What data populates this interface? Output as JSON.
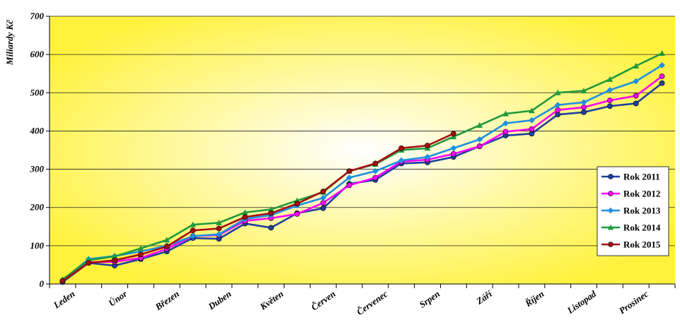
{
  "chart_data": {
    "type": "line",
    "ylabel": "Miliardy Kč",
    "ylim": [
      0,
      700
    ],
    "yticks": [
      0,
      100,
      200,
      300,
      400,
      500,
      600,
      700
    ],
    "grid": "horizontal",
    "legend_position": "right",
    "background": "radial gradient, light yellow center to yellow edges",
    "month_labels": [
      "Leden",
      "Únor",
      "Březen",
      "Duben",
      "Květen",
      "Červen",
      "Červenec",
      "Srpen",
      "Září",
      "Říjen",
      "Listopad",
      "Prosinec"
    ],
    "x_note": "Two observations per month (mid-month and month-end), 24 points",
    "series": [
      {
        "name": "Rok 2011",
        "color": "#1f3fa0",
        "marker": "circle",
        "values": [
          5,
          55,
          48,
          65,
          85,
          120,
          118,
          158,
          147,
          185,
          198,
          262,
          272,
          315,
          318,
          332,
          360,
          388,
          393,
          443,
          449,
          465,
          472,
          525
        ]
      },
      {
        "name": "Rok 2012",
        "color": "#ff00ff",
        "marker": "circle",
        "values": [
          8,
          57,
          58,
          68,
          92,
          125,
          128,
          165,
          172,
          183,
          212,
          258,
          278,
          320,
          325,
          340,
          360,
          398,
          405,
          455,
          462,
          480,
          492,
          543
        ]
      },
      {
        "name": "Rok 2013",
        "color": "#1e90e0",
        "marker": "diamond",
        "values": [
          10,
          65,
          73,
          85,
          100,
          125,
          130,
          170,
          180,
          205,
          225,
          278,
          295,
          323,
          332,
          355,
          378,
          420,
          428,
          468,
          475,
          507,
          530,
          572
        ]
      },
      {
        "name": "Rok 2014",
        "color": "#1f9a3c",
        "marker": "triangle",
        "values": [
          12,
          62,
          72,
          93,
          115,
          155,
          160,
          187,
          195,
          218,
          240,
          295,
          313,
          350,
          355,
          385,
          415,
          445,
          453,
          500,
          505,
          535,
          570,
          603
        ]
      },
      {
        "name": "Rok 2015",
        "color": "#a50f0f",
        "marker": "circle",
        "values": [
          8,
          55,
          62,
          77,
          98,
          140,
          145,
          175,
          185,
          210,
          242,
          295,
          315,
          355,
          362,
          393
        ]
      }
    ]
  }
}
